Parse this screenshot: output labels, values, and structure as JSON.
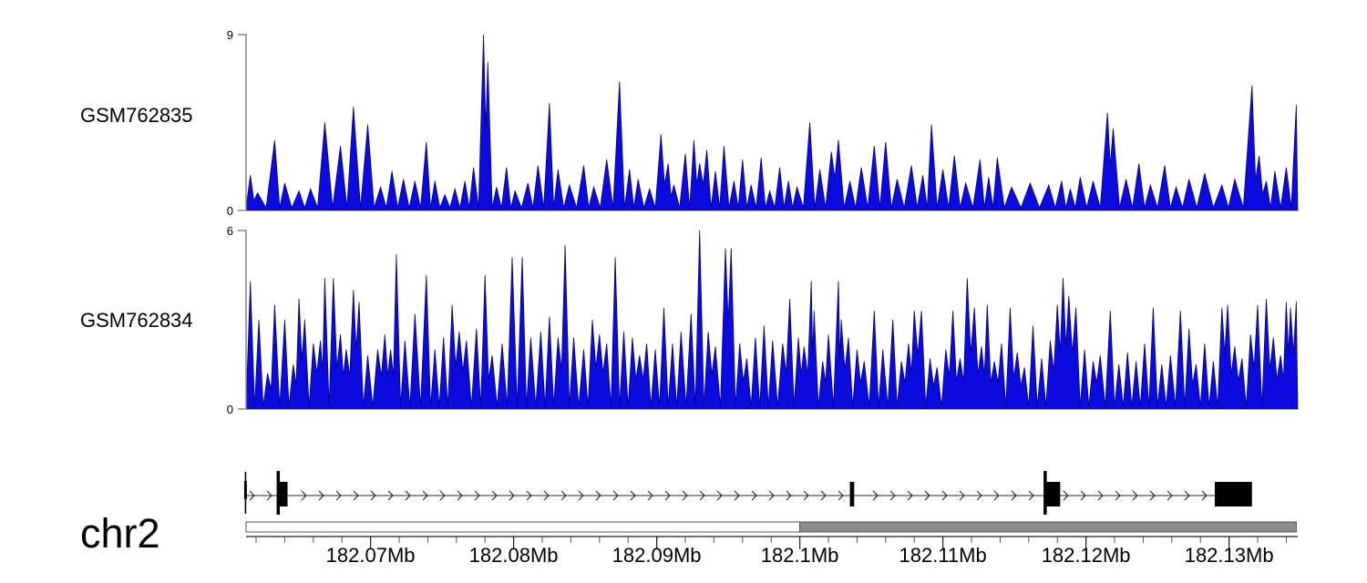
{
  "axis": {
    "chromosome": "chr2",
    "unit": "Mb",
    "start_mb": 182.0613,
    "end_mb": 182.1348,
    "major_ticks": [
      {
        "mb": 182.07,
        "label": "182.07Mb"
      },
      {
        "mb": 182.08,
        "label": "182.08Mb"
      },
      {
        "mb": 182.09,
        "label": "182.09Mb"
      },
      {
        "mb": 182.1,
        "label": "182.1Mb"
      },
      {
        "mb": 182.11,
        "label": "182.11Mb"
      },
      {
        "mb": 182.12,
        "label": "182.12Mb"
      },
      {
        "mb": 182.13,
        "label": "182.13Mb"
      }
    ],
    "minor_tick_start_mb": 182.062,
    "minor_tick_step_mb": 0.002,
    "range_segments": [
      {
        "start_mb": 182.0613,
        "end_mb": 182.1,
        "style": "open"
      },
      {
        "start_mb": 182.1,
        "end_mb": 182.1347,
        "style": "filled"
      }
    ]
  },
  "gene_track": {
    "strand": "+",
    "line_start_mb": 182.0613,
    "line_end_mb": 182.129,
    "features": [
      {
        "start_mb": 182.0612,
        "end_mb": 182.0614,
        "kind": "boundary"
      },
      {
        "start_mb": 182.0635,
        "end_mb": 182.0642,
        "kind": "exon",
        "tall_left": true
      },
      {
        "start_mb": 182.1035,
        "end_mb": 182.1038,
        "kind": "exon",
        "tall_left": false
      },
      {
        "start_mb": 182.1171,
        "end_mb": 182.1182,
        "kind": "exon",
        "tall_left": true
      },
      {
        "start_mb": 182.129,
        "end_mb": 182.1316,
        "kind": "exon",
        "tall_left": false
      }
    ]
  },
  "colors": {
    "signal_fill": "#0b0be0",
    "signal_stroke": "#050573",
    "axis_gray": "#8a8a8a",
    "bar_gray": "#8c8c8c",
    "bar_border": "#555555",
    "ink": "#000000",
    "gene_ink": "#2b2b2b"
  },
  "chart_data": [
    {
      "type": "area",
      "name": "GSM762835",
      "x_unit": "Mb",
      "ylim": [
        0,
        9
      ],
      "ytick_top": "9",
      "ytick_bottom": "0",
      "peaks": [
        [
          182.0616,
          1.8
        ],
        [
          182.0621,
          0.9
        ],
        [
          182.0633,
          3.6
        ],
        [
          182.064,
          1.4
        ],
        [
          182.065,
          1.0
        ],
        [
          182.0658,
          1.1
        ],
        [
          182.0668,
          4.5
        ],
        [
          182.0679,
          3.3
        ],
        [
          182.0688,
          5.3
        ],
        [
          182.0698,
          4.4
        ],
        [
          182.0707,
          1.2
        ],
        [
          182.0715,
          2.0
        ],
        [
          182.0723,
          1.6
        ],
        [
          182.0731,
          1.5
        ],
        [
          182.0739,
          3.5
        ],
        [
          182.0745,
          1.5
        ],
        [
          182.0752,
          0.8
        ],
        [
          182.0759,
          1.1
        ],
        [
          182.0766,
          1.5
        ],
        [
          182.0772,
          2.2
        ],
        [
          182.0779,
          9.0
        ],
        [
          182.0782,
          7.6
        ],
        [
          182.0788,
          1.2
        ],
        [
          182.0795,
          2.2
        ],
        [
          182.0801,
          1.0
        ],
        [
          182.081,
          1.4
        ],
        [
          182.0817,
          2.3
        ],
        [
          182.0825,
          5.5
        ],
        [
          182.0831,
          2.1
        ],
        [
          182.0839,
          1.3
        ],
        [
          182.0849,
          2.3
        ],
        [
          182.0856,
          1.2
        ],
        [
          182.0865,
          2.6
        ],
        [
          182.0874,
          6.6
        ],
        [
          182.0881,
          2.1
        ],
        [
          182.0887,
          1.6
        ],
        [
          182.0895,
          1.1
        ],
        [
          182.0903,
          3.9
        ],
        [
          182.0908,
          2.4
        ],
        [
          182.0912,
          1.3
        ],
        [
          182.092,
          2.9
        ],
        [
          182.0926,
          3.6
        ],
        [
          182.093,
          2.4
        ],
        [
          182.0935,
          3.1
        ],
        [
          182.0941,
          2.0
        ],
        [
          182.0947,
          3.3
        ],
        [
          182.0954,
          1.5
        ],
        [
          182.096,
          2.6
        ],
        [
          182.0966,
          1.3
        ],
        [
          182.0973,
          2.7
        ],
        [
          182.0979,
          1.0
        ],
        [
          182.0986,
          2.2
        ],
        [
          182.0992,
          1.5
        ],
        [
          182.0998,
          1.2
        ],
        [
          182.1007,
          4.5
        ],
        [
          182.1014,
          2.1
        ],
        [
          182.1022,
          3.0
        ],
        [
          182.1027,
          3.6
        ],
        [
          182.1035,
          1.5
        ],
        [
          182.1043,
          2.2
        ],
        [
          182.1052,
          3.3
        ],
        [
          182.106,
          3.5
        ],
        [
          182.1068,
          1.6
        ],
        [
          182.1078,
          2.3
        ],
        [
          182.1086,
          1.8
        ],
        [
          182.1092,
          4.4
        ],
        [
          182.11,
          2.1
        ],
        [
          182.1108,
          2.8
        ],
        [
          182.1116,
          1.4
        ],
        [
          182.1126,
          2.6
        ],
        [
          182.1132,
          1.7
        ],
        [
          182.1138,
          2.7
        ],
        [
          182.1148,
          1.2
        ],
        [
          182.1161,
          1.4
        ],
        [
          182.1174,
          1.3
        ],
        [
          182.1183,
          1.5
        ],
        [
          182.1189,
          1.1
        ],
        [
          182.1196,
          1.7
        ],
        [
          182.1205,
          1.5
        ],
        [
          182.1215,
          5.0
        ],
        [
          182.1219,
          4.2
        ],
        [
          182.1228,
          1.6
        ],
        [
          182.1237,
          2.4
        ],
        [
          182.1245,
          1.3
        ],
        [
          182.1255,
          2.3
        ],
        [
          182.1263,
          1.2
        ],
        [
          182.1272,
          1.6
        ],
        [
          182.1283,
          1.9
        ],
        [
          182.1295,
          1.3
        ],
        [
          182.1304,
          1.6
        ],
        [
          182.1316,
          6.4
        ],
        [
          182.1321,
          2.8
        ],
        [
          182.1326,
          1.5
        ],
        [
          182.1332,
          2.0
        ],
        [
          182.134,
          2.2
        ],
        [
          182.1347,
          5.4
        ]
      ]
    },
    {
      "type": "area",
      "name": "GSM762834",
      "x_unit": "Mb",
      "ylim": [
        0,
        6
      ],
      "ytick_top": "6",
      "ytick_bottom": "0",
      "peaks": [
        [
          182.0616,
          4.3
        ],
        [
          182.0622,
          3.0
        ],
        [
          182.0628,
          1.2
        ],
        [
          182.0633,
          3.5
        ],
        [
          182.064,
          3.0
        ],
        [
          182.0646,
          1.5
        ],
        [
          182.065,
          3.7
        ],
        [
          182.0654,
          3.0
        ],
        [
          182.066,
          2.2
        ],
        [
          182.0665,
          2.3
        ],
        [
          182.0668,
          4.4
        ],
        [
          182.0674,
          4.4
        ],
        [
          182.0679,
          2.5
        ],
        [
          182.0683,
          2.0
        ],
        [
          182.0688,
          4.0
        ],
        [
          182.0692,
          3.6
        ],
        [
          182.0698,
          1.8
        ],
        [
          182.0705,
          2.0
        ],
        [
          182.071,
          2.5
        ],
        [
          182.0714,
          2.0
        ],
        [
          182.0718,
          5.2
        ],
        [
          182.0724,
          2.3
        ],
        [
          182.0731,
          3.2
        ],
        [
          182.0739,
          4.5
        ],
        [
          182.0745,
          2.0
        ],
        [
          182.0751,
          2.4
        ],
        [
          182.0757,
          3.5
        ],
        [
          182.0762,
          2.6
        ],
        [
          182.0767,
          2.3
        ],
        [
          182.0774,
          2.7
        ],
        [
          182.078,
          4.5
        ],
        [
          182.0785,
          1.8
        ],
        [
          182.0792,
          2.2
        ],
        [
          182.0799,
          5.1
        ],
        [
          182.0806,
          5.1
        ],
        [
          182.0812,
          2.4
        ],
        [
          182.0819,
          2.6
        ],
        [
          182.0825,
          3.1
        ],
        [
          182.0831,
          2.4
        ],
        [
          182.0836,
          5.5
        ],
        [
          182.0842,
          2.4
        ],
        [
          182.0849,
          2.0
        ],
        [
          182.0855,
          3.0
        ],
        [
          182.086,
          2.5
        ],
        [
          182.0865,
          2.2
        ],
        [
          182.0871,
          5.1
        ],
        [
          182.0877,
          2.6
        ],
        [
          182.0883,
          2.4
        ],
        [
          182.0888,
          1.8
        ],
        [
          182.0893,
          2.2
        ],
        [
          182.0899,
          2.0
        ],
        [
          182.0905,
          3.4
        ],
        [
          182.0911,
          2.2
        ],
        [
          182.0917,
          2.6
        ],
        [
          182.0924,
          3.2
        ],
        [
          182.093,
          6.0
        ],
        [
          182.0936,
          2.6
        ],
        [
          182.0941,
          2.1
        ],
        [
          182.0948,
          5.4
        ],
        [
          182.0952,
          5.4
        ],
        [
          182.0958,
          2.2
        ],
        [
          182.0963,
          1.7
        ],
        [
          182.0969,
          2.4
        ],
        [
          182.0975,
          2.8
        ],
        [
          182.0981,
          2.3
        ],
        [
          182.0988,
          2.2
        ],
        [
          182.0993,
          3.7
        ],
        [
          182.0999,
          2.4
        ],
        [
          182.1003,
          2.1
        ],
        [
          182.1008,
          4.3
        ],
        [
          182.101,
          3.3
        ],
        [
          182.1016,
          1.6
        ],
        [
          182.102,
          2.5
        ],
        [
          182.1027,
          4.3
        ],
        [
          182.1029,
          3.0
        ],
        [
          182.1034,
          2.4
        ],
        [
          182.104,
          2.0
        ],
        [
          182.1045,
          1.6
        ],
        [
          182.1052,
          3.3
        ],
        [
          182.1058,
          2.0
        ],
        [
          182.1065,
          3.0
        ],
        [
          182.1071,
          1.6
        ],
        [
          182.1076,
          2.2
        ],
        [
          182.108,
          3.3
        ],
        [
          182.1085,
          3.3
        ],
        [
          182.1091,
          1.7
        ],
        [
          182.1096,
          1.4
        ],
        [
          182.1102,
          2.0
        ],
        [
          182.1107,
          3.3
        ],
        [
          182.1112,
          1.7
        ],
        [
          182.1117,
          4.4
        ],
        [
          182.1122,
          3.4
        ],
        [
          182.1127,
          2.1
        ],
        [
          182.1131,
          3.5
        ],
        [
          182.1136,
          1.6
        ],
        [
          182.1141,
          2.2
        ],
        [
          182.1147,
          3.4
        ],
        [
          182.1152,
          1.9
        ],
        [
          182.1157,
          1.4
        ],
        [
          182.1163,
          2.8
        ],
        [
          182.1169,
          1.7
        ],
        [
          182.1175,
          2.3
        ],
        [
          182.118,
          3.5
        ],
        [
          182.1184,
          4.4
        ],
        [
          182.1188,
          3.8
        ],
        [
          182.1193,
          3.4
        ],
        [
          182.1199,
          2.0
        ],
        [
          182.1205,
          1.6
        ],
        [
          182.121,
          1.8
        ],
        [
          182.1217,
          3.3
        ],
        [
          182.1223,
          1.5
        ],
        [
          182.1229,
          1.9
        ],
        [
          182.1235,
          1.6
        ],
        [
          182.1241,
          2.2
        ],
        [
          182.1247,
          3.4
        ],
        [
          182.1253,
          1.5
        ],
        [
          182.1259,
          1.8
        ],
        [
          182.1266,
          3.3
        ],
        [
          182.1272,
          2.7
        ],
        [
          182.1277,
          1.5
        ],
        [
          182.1283,
          2.2
        ],
        [
          182.1289,
          1.6
        ],
        [
          182.1295,
          3.4
        ],
        [
          182.1299,
          3.5
        ],
        [
          182.1304,
          2.1
        ],
        [
          182.1309,
          1.7
        ],
        [
          182.1315,
          2.5
        ],
        [
          182.132,
          3.5
        ],
        [
          182.1326,
          3.7
        ],
        [
          182.1331,
          2.4
        ],
        [
          182.1336,
          1.8
        ],
        [
          182.134,
          3.6
        ],
        [
          182.1343,
          3.4
        ],
        [
          182.1347,
          3.6
        ]
      ]
    }
  ]
}
